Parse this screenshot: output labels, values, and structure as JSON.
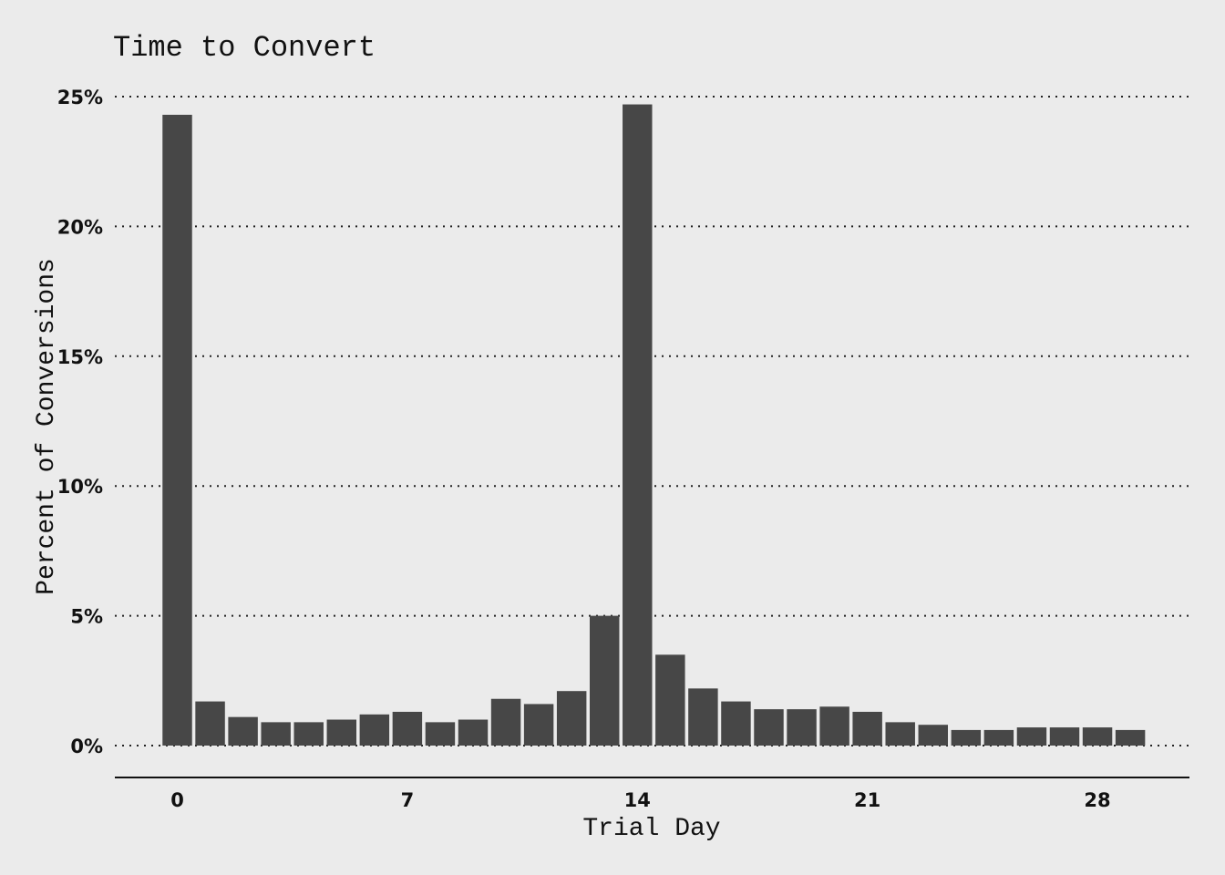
{
  "chart_data": {
    "type": "bar",
    "title": "Time to Convert",
    "xlabel": "Trial Day",
    "ylabel": "Percent of Conversions",
    "x": [
      0,
      1,
      2,
      3,
      4,
      5,
      6,
      7,
      8,
      9,
      10,
      11,
      12,
      13,
      14,
      15,
      16,
      17,
      18,
      19,
      20,
      21,
      22,
      23,
      24,
      25,
      26,
      27,
      28,
      29
    ],
    "values": [
      24.3,
      1.7,
      1.1,
      0.9,
      0.9,
      1.0,
      1.2,
      1.3,
      0.9,
      1.0,
      1.8,
      1.6,
      2.1,
      5.0,
      24.7,
      3.5,
      2.2,
      1.7,
      1.4,
      1.4,
      1.5,
      1.3,
      0.9,
      0.8,
      0.6,
      0.6,
      0.7,
      0.7,
      0.7,
      0.6
    ],
    "xticks": [
      0,
      7,
      14,
      21,
      28
    ],
    "xtick_labels": [
      "0",
      "7",
      "14",
      "21",
      "28"
    ],
    "yticks": [
      0,
      5,
      10,
      15,
      20,
      25
    ],
    "ytick_labels": [
      "0%",
      "5%",
      "10%",
      "15%",
      "20%",
      "25%"
    ],
    "ylim": [
      0,
      25
    ],
    "xlim": [
      -1.9,
      30.8
    ],
    "grid": true,
    "bar_color": "#474747",
    "background_color": "#ebebeb"
  }
}
